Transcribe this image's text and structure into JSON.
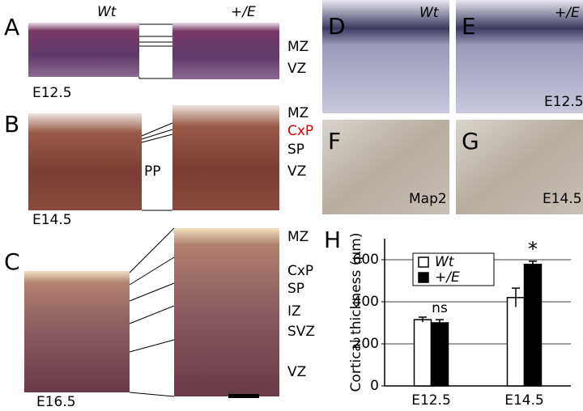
{
  "panel_A": {
    "label": "A",
    "left_genotype": "Wt",
    "right_genotype": "+/E",
    "layers": [
      "MZ",
      "VZ"
    ],
    "stage": "E12.5"
  },
  "panel_B": {
    "label": "B",
    "layers": [
      "MZ",
      "CxP",
      "SP",
      "VZ"
    ],
    "preplate": "PP",
    "stage": "E14.5"
  },
  "panel_C": {
    "label": "C",
    "layers": [
      "MZ",
      "CxP",
      "SP",
      "IZ",
      "SVZ",
      "VZ"
    ],
    "stage": "E16.5"
  },
  "panel_D": {
    "label": "D",
    "genotype": "Wt"
  },
  "panel_E": {
    "label": "E",
    "genotype": "+/E",
    "stage": "E12.5"
  },
  "panel_F": {
    "label": "F",
    "marker": "Map2"
  },
  "panel_G": {
    "label": "G",
    "stage": "E14.5"
  },
  "chart_data": {
    "type": "bar",
    "panel_label": "H",
    "y_label": "Cortical thickness (µm)",
    "categories": [
      "E12.5",
      "E14.5"
    ],
    "series": [
      {
        "name": "Wt",
        "color": "#ffffff",
        "values": [
          315,
          420
        ],
        "errors": [
          12,
          45
        ]
      },
      {
        "name": "+/E",
        "color": "#000000",
        "values": [
          300,
          578
        ],
        "errors": [
          15,
          15
        ]
      }
    ],
    "ylim": [
      0,
      700
    ],
    "yticks": [
      0,
      200,
      400,
      600
    ],
    "grid": true,
    "legend": "upper left",
    "annotations": [
      "ns",
      "*"
    ]
  }
}
